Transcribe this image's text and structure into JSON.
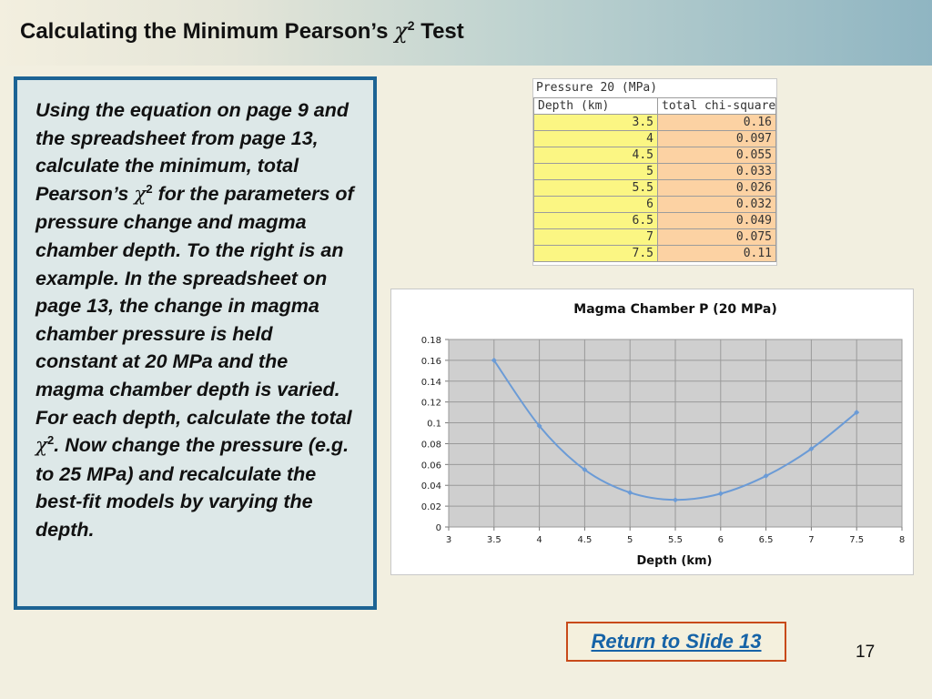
{
  "slide": {
    "title_text": "Calculating the Minimum Pearson’s ",
    "title_chi": "χ",
    "title_sup": "2",
    "title_end": " Test",
    "page_number": "17"
  },
  "textbox": {
    "part1": "Using the equation on page 9 and the spreadsheet from page 13, calculate the minimum, total Pearson’s ",
    "chi1": "χ",
    "sup1": "2",
    "part2": " for the parameters of pressure change and magma chamber depth. To the right is an example. In the spreadsheet on page 13, the change in magma chamber pressure is held constant at 20 MPa and the magma chamber depth is varied. For each depth, calculate the total ",
    "chi2": "χ",
    "sup2": "2",
    "part3": ". Now change the pressure (e.g. to 25 MPa) and recalculate the best-fit models by varying the depth."
  },
  "spreadsheet": {
    "header": "Pressure 20 (MPa)",
    "col1": "Depth (km)",
    "col2": "total chi-square",
    "rows": [
      {
        "depth": "3.5",
        "chi": "0.16"
      },
      {
        "depth": "4",
        "chi": "0.097"
      },
      {
        "depth": "4.5",
        "chi": "0.055"
      },
      {
        "depth": "5",
        "chi": "0.033"
      },
      {
        "depth": "5.5",
        "chi": "0.026"
      },
      {
        "depth": "6",
        "chi": "0.032"
      },
      {
        "depth": "6.5",
        "chi": "0.049"
      },
      {
        "depth": "7",
        "chi": "0.075"
      },
      {
        "depth": "7.5",
        "chi": "0.11"
      }
    ]
  },
  "chart_data": {
    "type": "line",
    "title": "Magma Chamber P (20 MPa)",
    "xlabel": "Depth (km)",
    "ylabel": "",
    "xlim": [
      3,
      8
    ],
    "ylim": [
      0,
      0.18
    ],
    "x_ticks": [
      "3",
      "3.5",
      "4",
      "4.5",
      "5",
      "5.5",
      "6",
      "6.5",
      "7",
      "7.5",
      "8"
    ],
    "y_ticks": [
      "0",
      "0.02",
      "0.04",
      "0.06",
      "0.08",
      "0.1",
      "0.12",
      "0.14",
      "0.16",
      "0.18"
    ],
    "grid": true,
    "legend": "none",
    "series": [
      {
        "x": [
          3.5,
          4,
          4.5,
          5,
          5.5,
          6,
          6.5,
          7,
          7.5
        ],
        "values": [
          0.16,
          0.097,
          0.055,
          0.033,
          0.026,
          0.032,
          0.049,
          0.075,
          0.11
        ],
        "color": "#6b9bd6"
      }
    ],
    "plot_background": "#cfcfcf"
  },
  "link": {
    "label": "Return to Slide 13"
  },
  "colors": {
    "accent_border": "#1c6394",
    "link_color": "#1663a7",
    "link_border": "#c84a1a",
    "depth_fill": "#fbf683",
    "chi_fill": "#fcd2a3"
  }
}
